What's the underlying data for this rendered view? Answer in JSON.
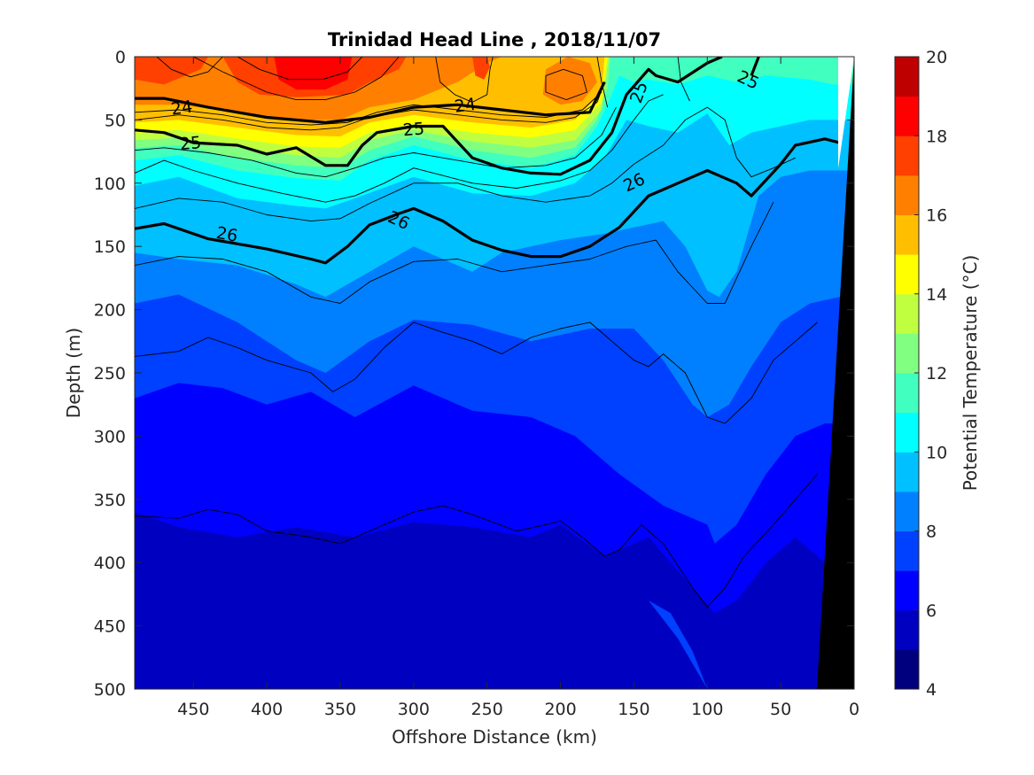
{
  "chart_data": {
    "type": "contour",
    "title": "Trinidad Head Line , 2018/11/07",
    "xlabel": "Offshore Distance (km)",
    "ylabel": "Depth (m)",
    "colorbar_label": "Potential Temperature (°C)",
    "xlim": [
      490,
      0
    ],
    "ylim": [
      500,
      0
    ],
    "x_ticks": [
      450,
      400,
      350,
      300,
      250,
      200,
      150,
      100,
      50,
      0
    ],
    "y_ticks": [
      0,
      50,
      100,
      150,
      200,
      250,
      300,
      350,
      400,
      450,
      500
    ],
    "colorbar_ticks": [
      4,
      6,
      8,
      10,
      12,
      14,
      16,
      18,
      20
    ],
    "colorbar_range": [
      4,
      20
    ],
    "colormap": [
      "#00007f",
      "#0000c0",
      "#0000ff",
      "#0040ff",
      "#0080ff",
      "#00c0ff",
      "#00ffff",
      "#40ffbf",
      "#80ff80",
      "#bfff40",
      "#ffff00",
      "#ffbf00",
      "#ff8000",
      "#ff4000",
      "#ff0000",
      "#bf0000"
    ],
    "density_contours": [
      {
        "label": "24",
        "x": [
          490,
          470,
          440,
          400,
          360,
          330,
          300,
          270,
          240,
          210,
          180,
          170
        ],
        "depth": [
          33,
          33,
          40,
          48,
          52,
          48,
          40,
          38,
          42,
          46,
          44,
          20
        ]
      },
      {
        "label": "25",
        "x": [
          490,
          470,
          450,
          420,
          400,
          380,
          360,
          345,
          335,
          325,
          300,
          280,
          260,
          240,
          220,
          200,
          180,
          165,
          155,
          140,
          135,
          120,
          100,
          90
        ],
        "depth": [
          58,
          60,
          68,
          70,
          77,
          72,
          86,
          86,
          70,
          60,
          55,
          55,
          80,
          88,
          92,
          93,
          82,
          60,
          30,
          10,
          15,
          20,
          5,
          0
        ]
      },
      {
        "label": "25",
        "x": [
          70,
          65
        ],
        "depth": [
          15,
          0
        ]
      },
      {
        "label": "26",
        "x": [
          490,
          470,
          440,
          400,
          370,
          360,
          345,
          330,
          310,
          300,
          280,
          260,
          240,
          220,
          200,
          180,
          160,
          140,
          120,
          100,
          80,
          70,
          50,
          40,
          20,
          10
        ],
        "depth": [
          136,
          132,
          144,
          152,
          160,
          163,
          150,
          133,
          124,
          120,
          130,
          145,
          153,
          158,
          158,
          150,
          135,
          110,
          100,
          90,
          100,
          110,
          85,
          70,
          65,
          68
        ]
      }
    ],
    "data_labels": [
      "24",
      "24",
      "25",
      "25",
      "25",
      "25",
      "26",
      "26",
      "26"
    ],
    "bathymetry_depth_at_x0": 0,
    "bathymetry_depth_at_x25": 500
  }
}
